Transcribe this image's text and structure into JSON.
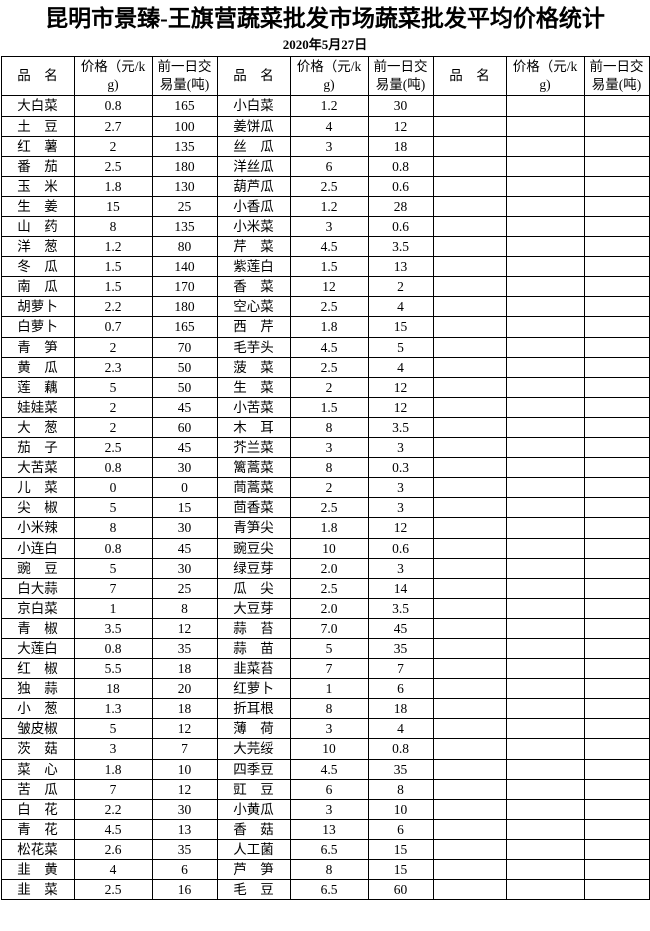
{
  "title": "昆明市景臻-王旗营蔬菜批发市场蔬菜批发平均价格统计",
  "date": "2020年5月27日",
  "colors": {
    "text": "#000000",
    "border": "#000000",
    "background": "#ffffff"
  },
  "table": {
    "column_headers": {
      "name": "品　名",
      "price": "价格（元/kg)",
      "volume": "前一日交易量(吨)"
    },
    "group_count": 3,
    "rows": [
      [
        "大白菜",
        "0.8",
        "165",
        "小白菜",
        "1.2",
        "30",
        "",
        "",
        ""
      ],
      [
        "土　豆",
        "2.7",
        "100",
        "姜饼瓜",
        "4",
        "12",
        "",
        "",
        ""
      ],
      [
        "红　薯",
        "2",
        "135",
        "丝　瓜",
        "3",
        "18",
        "",
        "",
        ""
      ],
      [
        "番　茄",
        "2.5",
        "180",
        "洋丝瓜",
        "6",
        "0.8",
        "",
        "",
        ""
      ],
      [
        "玉　米",
        "1.8",
        "130",
        "葫芦瓜",
        "2.5",
        "0.6",
        "",
        "",
        ""
      ],
      [
        "生　姜",
        "15",
        "25",
        "小香瓜",
        "1.2",
        "28",
        "",
        "",
        ""
      ],
      [
        "山　药",
        "8",
        "135",
        "小米菜",
        "3",
        "0.6",
        "",
        "",
        ""
      ],
      [
        "洋　葱",
        "1.2",
        "80",
        "芹　菜",
        "4.5",
        "3.5",
        "",
        "",
        ""
      ],
      [
        "冬　瓜",
        "1.5",
        "140",
        "紫莲白",
        "1.5",
        "13",
        "",
        "",
        ""
      ],
      [
        "南　瓜",
        "1.5",
        "170",
        "香　菜",
        "12",
        "2",
        "",
        "",
        ""
      ],
      [
        "胡萝卜",
        "2.2",
        "180",
        "空心菜",
        "2.5",
        "4",
        "",
        "",
        ""
      ],
      [
        "白萝卜",
        "0.7",
        "165",
        "西　芹",
        "1.8",
        "15",
        "",
        "",
        ""
      ],
      [
        "青　笋",
        "2",
        "70",
        "毛芋头",
        "4.5",
        "5",
        "",
        "",
        ""
      ],
      [
        "黄　瓜",
        "2.3",
        "50",
        "菠　菜",
        "2.5",
        "4",
        "",
        "",
        ""
      ],
      [
        "莲　藕",
        "5",
        "50",
        "生　菜",
        "2",
        "12",
        "",
        "",
        ""
      ],
      [
        "娃娃菜",
        "2",
        "45",
        "小苦菜",
        "1.5",
        "12",
        "",
        "",
        ""
      ],
      [
        "大　葱",
        "2",
        "60",
        "木　耳",
        "8",
        "3.5",
        "",
        "",
        ""
      ],
      [
        "茄　子",
        "2.5",
        "45",
        "芥兰菜",
        "3",
        "3",
        "",
        "",
        ""
      ],
      [
        "大苦菜",
        "0.8",
        "30",
        "篱蒿菜",
        "8",
        "0.3",
        "",
        "",
        ""
      ],
      [
        "儿　菜",
        "0",
        "0",
        "茼蒿菜",
        "2",
        "3",
        "",
        "",
        ""
      ],
      [
        "尖　椒",
        "5",
        "15",
        "茴香菜",
        "2.5",
        "3",
        "",
        "",
        ""
      ],
      [
        "小米辣",
        "8",
        "30",
        "青笋尖",
        "1.8",
        "12",
        "",
        "",
        ""
      ],
      [
        "小连白",
        "0.8",
        "45",
        "豌豆尖",
        "10",
        "0.6",
        "",
        "",
        ""
      ],
      [
        "豌　豆",
        "5",
        "30",
        "绿豆芽",
        "2.0",
        "3",
        "",
        "",
        ""
      ],
      [
        "白大蒜",
        "7",
        "25",
        "瓜　尖",
        "2.5",
        "14",
        "",
        "",
        ""
      ],
      [
        "京白菜",
        "1",
        "8",
        "大豆芽",
        "2.0",
        "3.5",
        "",
        "",
        ""
      ],
      [
        "青　椒",
        "3.5",
        "12",
        "蒜　苔",
        "7.0",
        "45",
        "",
        "",
        ""
      ],
      [
        "大莲白",
        "0.8",
        "35",
        "蒜　苗",
        "5",
        "35",
        "",
        "",
        ""
      ],
      [
        "红　椒",
        "5.5",
        "18",
        "韭菜苔",
        "7",
        "7",
        "",
        "",
        ""
      ],
      [
        "独　蒜",
        "18",
        "20",
        "红萝卜",
        "1",
        "6",
        "",
        "",
        ""
      ],
      [
        "小　葱",
        "1.3",
        "18",
        "折耳根",
        "8",
        "18",
        "",
        "",
        ""
      ],
      [
        "皱皮椒",
        "5",
        "12",
        "薄　荷",
        "3",
        "4",
        "",
        "",
        ""
      ],
      [
        "茨　菇",
        "3",
        "7",
        "大芫绥",
        "10",
        "0.8",
        "",
        "",
        ""
      ],
      [
        "菜　心",
        "1.8",
        "10",
        "四季豆",
        "4.5",
        "35",
        "",
        "",
        ""
      ],
      [
        "苦　瓜",
        "7",
        "12",
        "豇　豆",
        "6",
        "8",
        "",
        "",
        ""
      ],
      [
        "白　花",
        "2.2",
        "30",
        "小黄瓜",
        "3",
        "10",
        "",
        "",
        ""
      ],
      [
        "青　花",
        "4.5",
        "13",
        "香　菇",
        "13",
        "6",
        "",
        "",
        ""
      ],
      [
        "松花菜",
        "2.6",
        "35",
        "人工菌",
        "6.5",
        "15",
        "",
        "",
        ""
      ],
      [
        "韭　黄",
        "4",
        "6",
        "芦　笋",
        "8",
        "15",
        "",
        "",
        ""
      ],
      [
        "韭　菜",
        "2.5",
        "16",
        "毛　豆",
        "6.5",
        "60",
        "",
        "",
        ""
      ]
    ]
  }
}
